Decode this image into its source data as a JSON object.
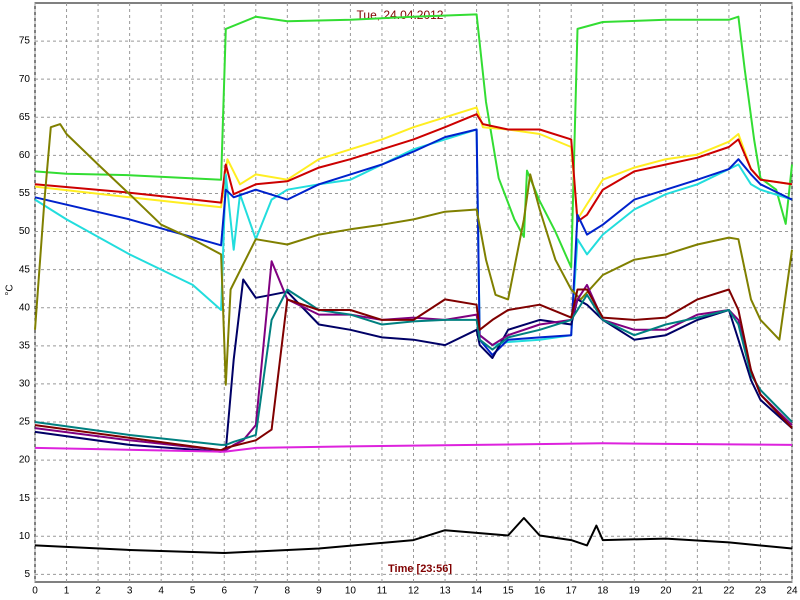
{
  "chart_data": {
    "type": "line",
    "title": "Tue, 24.04.2012",
    "x_label": "Time [23:56]",
    "y_label": "°C",
    "xlim": [
      0,
      24
    ],
    "ylim": [
      4,
      80
    ],
    "xticks": [
      0,
      1,
      2,
      3,
      4,
      5,
      6,
      7,
      8,
      9,
      10,
      11,
      12,
      13,
      14,
      15,
      16,
      17,
      18,
      19,
      20,
      21,
      22,
      23,
      24
    ],
    "yticks": [
      5,
      10,
      15,
      20,
      25,
      30,
      35,
      40,
      45,
      50,
      55,
      60,
      65,
      70,
      75
    ],
    "grid": true,
    "series": [
      {
        "color": "#33dd33",
        "x": [
          0,
          1,
          3,
          5.9,
          6.05,
          7,
          8,
          10,
          12,
          14,
          14.3,
          14.7,
          15.2,
          15.5,
          15.6,
          16,
          16.5,
          17,
          17.2,
          18,
          20,
          22,
          22.3,
          22.5,
          22.8,
          23,
          23.5,
          23.8,
          24
        ],
        "values": [
          57.9,
          57.6,
          57.4,
          56.8,
          76.6,
          78.2,
          77.6,
          77.8,
          78.2,
          78.5,
          67,
          57,
          51.6,
          49.3,
          58,
          54,
          50,
          45.3,
          76.6,
          77.5,
          77.8,
          77.8,
          78.2,
          71.3,
          62,
          57,
          55.5,
          51,
          58.8
        ]
      },
      {
        "color": "#ffee22",
        "x": [
          0,
          3,
          5.9,
          6.1,
          6.5,
          7,
          8,
          9,
          10,
          11,
          12,
          13,
          14,
          14.2,
          15,
          16,
          17,
          17.2,
          17.5,
          18,
          19,
          20,
          21,
          22,
          22.3,
          22.7,
          23,
          24
        ],
        "values": [
          55.9,
          54.5,
          53.2,
          59.5,
          56.2,
          57.5,
          56.8,
          59.5,
          60.8,
          62.1,
          63.7,
          65,
          66.3,
          63.7,
          63.4,
          62.8,
          61.1,
          51.6,
          53.6,
          56.8,
          58.4,
          59.5,
          60.1,
          61.8,
          62.8,
          58.2,
          56.8,
          56.2
        ]
      },
      {
        "color": "#cc0000",
        "x": [
          0,
          3,
          5.9,
          6.05,
          6.3,
          7,
          8,
          9,
          10,
          11,
          12,
          13,
          14,
          14.2,
          15,
          16,
          17,
          17.2,
          17.5,
          18,
          19,
          20,
          21,
          22,
          22.3,
          22.7,
          23,
          24
        ],
        "values": [
          56.2,
          55.1,
          53.8,
          58.8,
          54.9,
          56.2,
          56.6,
          58.4,
          59.5,
          60.8,
          62.1,
          63.7,
          65.4,
          64.1,
          63.4,
          63.4,
          62.1,
          51.3,
          52.2,
          55.5,
          57.9,
          58.8,
          59.7,
          61.1,
          62.1,
          58.2,
          56.8,
          56.2
        ]
      },
      {
        "color": "#22dddd",
        "x": [
          0,
          1,
          3,
          5,
          5.9,
          6.05,
          6.3,
          6.5,
          7,
          7.5,
          8,
          9,
          10,
          11,
          12,
          13,
          14,
          14.1,
          14.5,
          15,
          16,
          17,
          17.2,
          17.5,
          18,
          19,
          20,
          21,
          22,
          22.3,
          22.7,
          23,
          24
        ],
        "values": [
          54.2,
          51.6,
          47,
          43,
          39.7,
          57.5,
          47.6,
          54.9,
          49,
          54.2,
          55.5,
          56.2,
          56.8,
          58.8,
          60.8,
          62.1,
          63.4,
          36.4,
          35.1,
          35.5,
          35.8,
          36.4,
          49,
          47,
          49.6,
          52.9,
          54.9,
          56.2,
          58.2,
          58.8,
          56.2,
          55.5,
          54.2
        ]
      },
      {
        "color": "#0022cc",
        "x": [
          0,
          3,
          5.9,
          6.05,
          6.3,
          7,
          8,
          9,
          10,
          11,
          12,
          13,
          14,
          14.1,
          14.5,
          15,
          16,
          17,
          17.2,
          17.5,
          18,
          19,
          20,
          21,
          22,
          22.3,
          22.7,
          23,
          24
        ],
        "values": [
          54.5,
          51.6,
          48.2,
          55.5,
          54.5,
          55.5,
          54.2,
          56.2,
          57.5,
          58.8,
          60.5,
          62.4,
          63.4,
          35.8,
          33.8,
          35.8,
          36.1,
          36.4,
          52.2,
          49.6,
          50.9,
          54.2,
          55.5,
          56.8,
          58.2,
          59.5,
          57.5,
          56.2,
          54.2
        ]
      },
      {
        "color": "#808000",
        "x": [
          0,
          0.3,
          0.5,
          0.8,
          1,
          2,
          3,
          4,
          5,
          5.9,
          6.05,
          6.2,
          7,
          8,
          9,
          10,
          11,
          12,
          13,
          14,
          14.3,
          14.6,
          15,
          15.5,
          15.7,
          16,
          16.5,
          17,
          17.3,
          18,
          19,
          20,
          21,
          22,
          22.3,
          22.7,
          23,
          23.6,
          24
        ],
        "values": [
          37.1,
          54.2,
          63.7,
          64.1,
          62.8,
          58.8,
          54.9,
          50.9,
          49,
          47,
          29.9,
          42.4,
          49,
          48.3,
          49.6,
          50.3,
          50.9,
          51.6,
          52.6,
          52.9,
          46.3,
          41.7,
          41.1,
          51.6,
          57.5,
          52.9,
          46.3,
          42.4,
          41.1,
          44.3,
          46.3,
          47,
          48.3,
          49.2,
          49,
          41.1,
          38.4,
          35.8,
          47.6
        ]
      },
      {
        "color": "#000066",
        "x": [
          0,
          3,
          5.9,
          6.05,
          6.3,
          6.6,
          7,
          7.5,
          8,
          9,
          10,
          11,
          12,
          13,
          14,
          14.1,
          14.5,
          15,
          16,
          17,
          17.2,
          17.5,
          18,
          19,
          20,
          21,
          22,
          22.3,
          22.7,
          23,
          24
        ],
        "values": [
          23.7,
          22,
          21.1,
          21.3,
          33.2,
          43.7,
          41.3,
          41.7,
          42.1,
          37.8,
          37.1,
          36.1,
          35.8,
          35.1,
          37.1,
          35.1,
          33.4,
          37.1,
          38.4,
          37.8,
          41.1,
          40.4,
          38.4,
          35.8,
          36.4,
          38.4,
          39.7,
          35.8,
          30.5,
          27.9,
          24.2
        ]
      },
      {
        "color": "#800080",
        "x": [
          0,
          3,
          5.9,
          6.05,
          6.3,
          6.6,
          7,
          7.5,
          8,
          9,
          10,
          11,
          12,
          13,
          14,
          14.1,
          14.5,
          15,
          16,
          17,
          17.2,
          17.5,
          18,
          19,
          20,
          21,
          22,
          22.3,
          22.7,
          23,
          24
        ],
        "values": [
          24.2,
          22.6,
          21.3,
          21.3,
          22,
          22.6,
          24.6,
          46.1,
          41.1,
          39.1,
          39.1,
          38.4,
          38.7,
          38.4,
          39.1,
          36.4,
          35.1,
          36.4,
          37.8,
          38.4,
          41.1,
          43,
          38.4,
          37.1,
          37.1,
          39.1,
          39.7,
          38.4,
          31.8,
          28.6,
          24.6
        ]
      },
      {
        "color": "#008080",
        "x": [
          0,
          3,
          5.9,
          6.05,
          6.3,
          7,
          7.5,
          8,
          9,
          10,
          11,
          12,
          13,
          14,
          14.1,
          14.5,
          15,
          16,
          17,
          17.2,
          17.5,
          18,
          19,
          20,
          21,
          22,
          22.3,
          22.7,
          23,
          24
        ],
        "values": [
          25,
          23.3,
          22,
          22,
          22.4,
          23.3,
          38.4,
          42.4,
          39.7,
          39.1,
          37.8,
          38.2,
          38.4,
          38.4,
          35.8,
          34.5,
          36.1,
          37.1,
          38.4,
          39.7,
          41.7,
          38.4,
          36.4,
          37.8,
          38.7,
          39.7,
          37.8,
          31.2,
          29.2,
          25
        ]
      },
      {
        "color": "#800000",
        "x": [
          0,
          5.9,
          6.05,
          7,
          7.5,
          8,
          9,
          10,
          11,
          12,
          13,
          14,
          14.1,
          14.5,
          15,
          16,
          17,
          17.2,
          17.5,
          18,
          19,
          20,
          21,
          22,
          22.3,
          22.7,
          23,
          24
        ],
        "values": [
          24.6,
          21.3,
          21.6,
          22.6,
          24,
          41.1,
          39.7,
          39.7,
          38.4,
          38.4,
          41.1,
          40.4,
          37.1,
          38.4,
          39.7,
          40.4,
          38.7,
          42.4,
          42.4,
          38.7,
          38.4,
          38.7,
          41.1,
          42.4,
          39.7,
          31.8,
          28.6,
          24.2
        ]
      },
      {
        "color": "#dd22dd",
        "x": [
          0,
          6,
          7,
          10,
          14,
          18,
          24
        ],
        "values": [
          21.6,
          21.1,
          21.6,
          21.8,
          22,
          22.2,
          22
        ]
      },
      {
        "color": "#000000",
        "x": [
          0,
          3,
          6,
          9,
          12,
          13,
          15,
          15.5,
          16,
          17,
          17.5,
          17.8,
          18,
          20,
          22,
          24
        ],
        "values": [
          8.8,
          8.2,
          7.8,
          8.4,
          9.5,
          10.8,
          10.1,
          12.4,
          10.1,
          9.5,
          8.8,
          11.4,
          9.5,
          9.7,
          9.2,
          8.4
        ]
      }
    ]
  }
}
